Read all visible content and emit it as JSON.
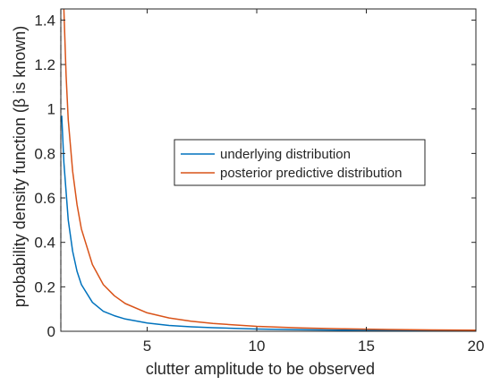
{
  "chart_data": {
    "type": "line",
    "xlabel": "clutter amplitude to be observed",
    "ylabel": "probability density function (β is known)",
    "xlim": [
      1.06,
      20
    ],
    "ylim": [
      0,
      1.45
    ],
    "xticks": [
      5,
      10,
      15,
      20
    ],
    "yticks": [
      0,
      0.2,
      0.4,
      0.6,
      0.8,
      1,
      1.2,
      1.4
    ],
    "grid": false,
    "legend_position": "center-right",
    "reference_line": {
      "x": 1.06,
      "style": "dashed",
      "color": "#808080"
    },
    "series": [
      {
        "name": "underlying distribution",
        "color": "#0072BD",
        "x": [
          1.1,
          1.2,
          1.4,
          1.6,
          1.8,
          2.0,
          2.5,
          3.0,
          3.5,
          4.0,
          5.0,
          6.0,
          7.0,
          8.0,
          10.0,
          12.0,
          14.0,
          16.0,
          18.0,
          20.0
        ],
        "y": [
          0.97,
          0.76,
          0.5,
          0.36,
          0.27,
          0.21,
          0.13,
          0.09,
          0.07,
          0.055,
          0.037,
          0.026,
          0.02,
          0.016,
          0.01,
          0.007,
          0.005,
          0.004,
          0.003,
          0.0025
        ]
      },
      {
        "name": "posterior predictive distribution",
        "color": "#D95319",
        "x": [
          1.1,
          1.2,
          1.3,
          1.4,
          1.6,
          1.8,
          2.0,
          2.5,
          3.0,
          3.5,
          4.0,
          5.0,
          6.0,
          7.0,
          8.0,
          10.0,
          12.0,
          14.0,
          16.0,
          18.0,
          20.0
        ],
        "y": [
          1.75,
          1.45,
          1.15,
          0.95,
          0.72,
          0.57,
          0.46,
          0.3,
          0.21,
          0.16,
          0.125,
          0.083,
          0.06,
          0.045,
          0.035,
          0.022,
          0.015,
          0.011,
          0.008,
          0.006,
          0.005
        ]
      }
    ]
  }
}
